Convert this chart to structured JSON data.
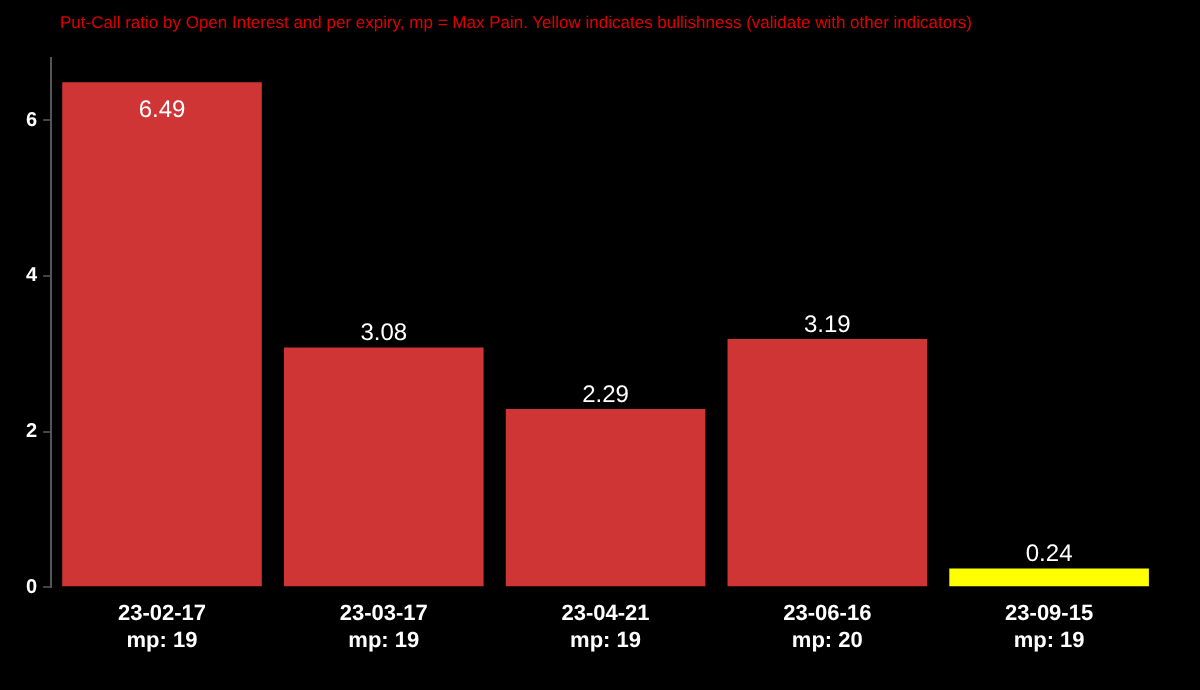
{
  "chart_data": {
    "type": "bar",
    "subtitle": "Put-Call ratio by Open Interest and per expiry, mp = Max Pain. Yellow indicates bullishness (validate with other indicators)",
    "categories": [
      "23-02-17\nmp: 19",
      "23-03-17\nmp: 19",
      "23-04-21\nmp: 19",
      "23-06-16\nmp: 20",
      "23-09-15\nmp: 19"
    ],
    "values": [
      6.49,
      3.08,
      2.29,
      3.19,
      0.24
    ],
    "colors": [
      "#d03536",
      "#d03536",
      "#d03536",
      "#d03536",
      "#ffff00"
    ],
    "ylim": [
      0,
      6.8
    ],
    "yticks": [
      0,
      2,
      4,
      6
    ],
    "grid": false,
    "legend": false,
    "data_labels": true
  }
}
